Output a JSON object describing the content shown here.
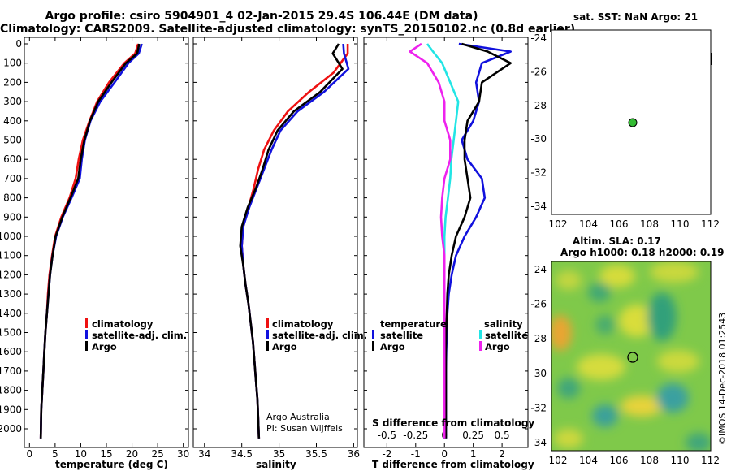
{
  "titles": {
    "line1": "Argo profile: csiro 5904901_4 02-Jan-2015 29.4S 106.44E (DM data)",
    "line2": "Climatology: CARS2009. Satellite-adjusted climatology: synTS_20150102.nc (0.8d earlier)"
  },
  "colors": {
    "climatology": "#ee1111",
    "satellite": "#1111dd",
    "argo": "#000000",
    "sat_salinity": "#22e5e5",
    "clim_salinity": "#ee22ee",
    "argo_dot": "#33bb33"
  },
  "depth_ticks": [
    0,
    100,
    200,
    300,
    400,
    500,
    600,
    700,
    800,
    900,
    1000,
    1100,
    1200,
    1300,
    1400,
    1500,
    1600,
    1700,
    1800,
    1900,
    2000
  ],
  "panels": {
    "temperature": {
      "xticks": [
        "0",
        "5",
        "10",
        "15",
        "20",
        "25",
        "30"
      ],
      "xlabel": "temperature (deg C)"
    },
    "salinity": {
      "xticks": [
        "34",
        "34.5",
        "35",
        "35.5",
        "36"
      ],
      "xlabel": "salinity",
      "credit1": "Argo Australia",
      "credit2": "PI: Susan Wijffels"
    },
    "difference": {
      "xticks": [
        "-2",
        "-1",
        "0",
        "1",
        "2"
      ],
      "sticks": [
        "-0.5",
        "-0.25",
        "0",
        "0.25",
        "0.5"
      ],
      "xlabel": "T difference from climatology",
      "slabel": "S difference from climatology",
      "leg_temp_title": "temperature",
      "leg_sal_title": "salinity"
    }
  },
  "legend": {
    "climatology": "climatology",
    "satellite_adj": "satellite-adj. clim.",
    "argo": "Argo",
    "satellite": "satellite"
  },
  "sst_map": {
    "title": "sat. SST: NaN Argo: 21",
    "yticks": [
      "-24",
      "-26",
      "-28",
      "-30",
      "-32",
      "-34"
    ],
    "xticks": [
      "102",
      "104",
      "106",
      "108",
      "110",
      "112"
    ]
  },
  "sla_map": {
    "title1": "Altim. SLA: 0.17",
    "title2": "Argo h1000: 0.18 h2000: 0.19",
    "yticks": [
      "-24",
      "-26",
      "-28",
      "-30",
      "-32",
      "-34"
    ],
    "xticks": [
      "102",
      "104",
      "106",
      "108",
      "110",
      "112"
    ],
    "stamp": "©IMOS 14-Dec-2018 01:2543"
  },
  "chart_data": [
    {
      "type": "line",
      "title": "Argo profile: csiro 5904901_4 02-Jan-2015 29.4S 106.44E (DM data)",
      "xlabel": "temperature (deg C)",
      "ylabel": "",
      "xlim": [
        -1,
        31
      ],
      "ylim": [
        2080,
        0
      ],
      "series": [
        {
          "name": "climatology",
          "x": [
            21.2,
            20.6,
            18.5,
            15.5,
            13.2,
            11.7,
            10.4,
            9.6,
            9.0,
            7.8,
            6.2,
            5.0,
            4.4,
            3.9,
            3.6,
            3.4,
            3.1,
            2.9,
            2.7,
            2.5,
            2.3,
            2.2
          ],
          "y": [
            0,
            50,
            100,
            200,
            300,
            400,
            500,
            600,
            700,
            800,
            900,
            1000,
            1100,
            1200,
            1300,
            1400,
            1500,
            1600,
            1700,
            1800,
            1900,
            2050
          ]
        },
        {
          "name": "satellite-adj. clim.",
          "x": [
            21.9,
            21.3,
            19.3,
            16.6,
            13.8,
            11.9,
            10.8,
            10.2,
            9.8,
            8.2,
            6.5,
            5.2,
            4.5,
            4.0,
            3.7,
            3.4,
            3.1,
            2.9,
            2.7,
            2.5,
            2.3,
            2.2
          ],
          "y": [
            0,
            50,
            100,
            200,
            300,
            400,
            500,
            600,
            700,
            800,
            900,
            1000,
            1100,
            1200,
            1300,
            1400,
            1500,
            1600,
            1700,
            1800,
            1900,
            2050
          ]
        },
        {
          "name": "Argo",
          "x": [
            21.4,
            21.0,
            18.8,
            16.0,
            13.4,
            11.8,
            10.7,
            10.0,
            9.5,
            8.0,
            6.4,
            5.1,
            4.5,
            4.0,
            3.7,
            3.4,
            3.1,
            2.9,
            2.7,
            2.5,
            2.3,
            2.2
          ],
          "y": [
            0,
            50,
            100,
            200,
            300,
            400,
            500,
            600,
            700,
            800,
            900,
            1000,
            1100,
            1200,
            1300,
            1400,
            1500,
            1600,
            1700,
            1800,
            1900,
            2050
          ]
        }
      ]
    },
    {
      "type": "line",
      "title": "",
      "xlabel": "salinity",
      "ylabel": "",
      "xlim": [
        33.85,
        36.05
      ],
      "ylim": [
        2080,
        0
      ],
      "series": [
        {
          "name": "climatology",
          "x": [
            35.92,
            35.92,
            35.73,
            35.4,
            35.12,
            34.93,
            34.8,
            34.72,
            34.66,
            34.59,
            34.52,
            34.5,
            34.52,
            34.55,
            34.59,
            34.62,
            34.65,
            34.67,
            34.69,
            34.71,
            34.72,
            34.73
          ],
          "y": [
            0,
            50,
            150,
            250,
            350,
            450,
            550,
            650,
            750,
            850,
            950,
            1050,
            1150,
            1250,
            1350,
            1450,
            1550,
            1650,
            1750,
            1850,
            1950,
            2050
          ]
        },
        {
          "name": "satellite-adj. clim.",
          "x": [
            35.86,
            35.87,
            35.93,
            35.6,
            35.25,
            35.02,
            34.9,
            34.8,
            34.7,
            34.6,
            34.52,
            34.5,
            34.52,
            34.55,
            34.59,
            34.62,
            34.65,
            34.67,
            34.69,
            34.71,
            34.72,
            34.73
          ],
          "y": [
            0,
            50,
            130,
            250,
            350,
            450,
            550,
            650,
            750,
            850,
            950,
            1050,
            1150,
            1250,
            1350,
            1450,
            1550,
            1650,
            1750,
            1850,
            1950,
            2050
          ]
        },
        {
          "name": "Argo",
          "x": [
            35.8,
            35.72,
            35.85,
            35.55,
            35.2,
            34.98,
            34.86,
            34.78,
            34.69,
            34.58,
            34.5,
            34.48,
            34.52,
            34.55,
            34.59,
            34.62,
            34.65,
            34.67,
            34.69,
            34.71,
            34.72,
            34.73
          ],
          "y": [
            0,
            50,
            130,
            250,
            350,
            450,
            550,
            650,
            750,
            850,
            950,
            1050,
            1150,
            1250,
            1350,
            1450,
            1550,
            1650,
            1750,
            1850,
            1950,
            2050
          ]
        }
      ]
    },
    {
      "type": "line",
      "title": "",
      "xlabel": "T difference from climatology",
      "ylabel": "",
      "xlim": [
        -2.8,
        2.9
      ],
      "ylim": [
        2080,
        0
      ],
      "x2label": "S difference from climatology",
      "x2lim": [
        -0.7,
        0.725
      ],
      "series": [
        {
          "name": "satellite (temperature)",
          "axis": "T",
          "x": [
            0.5,
            2.3,
            1.3,
            1.1,
            1.2,
            1.0,
            0.6,
            0.8,
            1.3,
            1.4,
            1.1,
            0.7,
            0.4,
            0.25,
            0.15,
            0.1,
            0.08,
            0.06,
            0.05,
            0.05,
            0.05,
            0.05
          ],
          "y": [
            0,
            40,
            100,
            200,
            300,
            400,
            500,
            600,
            700,
            800,
            900,
            1000,
            1100,
            1200,
            1300,
            1400,
            1500,
            1600,
            1700,
            1800,
            1900,
            2050
          ]
        },
        {
          "name": "Argo (temperature)",
          "axis": "T",
          "x": [
            0.6,
            1.5,
            2.3,
            1.3,
            1.2,
            0.8,
            0.7,
            0.7,
            0.8,
            0.9,
            0.7,
            0.4,
            0.25,
            0.15,
            0.1,
            0.08,
            0.06,
            0.05,
            0.05,
            0.05,
            0.05,
            0.05
          ],
          "y": [
            0,
            40,
            100,
            200,
            300,
            400,
            500,
            600,
            700,
            800,
            900,
            1000,
            1100,
            1200,
            1300,
            1400,
            1500,
            1600,
            1700,
            1800,
            1900,
            2050
          ]
        },
        {
          "name": "satellite (salinity)",
          "axis": "S",
          "x": [
            -0.15,
            -0.1,
            -0.02,
            0.05,
            0.12,
            0.1,
            0.08,
            0.06,
            0.05,
            0.03,
            0.01,
            0.0,
            0.0,
            0.0,
            0.0,
            0.0,
            0.0,
            0.0,
            0.0,
            0.0,
            0.0,
            0.0
          ],
          "y": [
            0,
            40,
            100,
            200,
            300,
            400,
            500,
            600,
            700,
            800,
            900,
            1000,
            1100,
            1200,
            1300,
            1400,
            1500,
            1600,
            1700,
            1800,
            1900,
            2050
          ]
        },
        {
          "name": "Argo (salinity)",
          "axis": "S",
          "x": [
            -0.2,
            -0.3,
            -0.15,
            -0.05,
            0.0,
            0.0,
            0.05,
            0.05,
            0.0,
            -0.02,
            -0.03,
            -0.02,
            0.0,
            0.0,
            0.0,
            0.0,
            0.0,
            0.0,
            0.0,
            0.0,
            0.0,
            0.0
          ],
          "y": [
            0,
            40,
            100,
            200,
            300,
            400,
            500,
            600,
            700,
            800,
            900,
            1000,
            1100,
            1200,
            1300,
            1400,
            1500,
            1600,
            1700,
            1800,
            1900,
            2050
          ]
        }
      ]
    }
  ]
}
